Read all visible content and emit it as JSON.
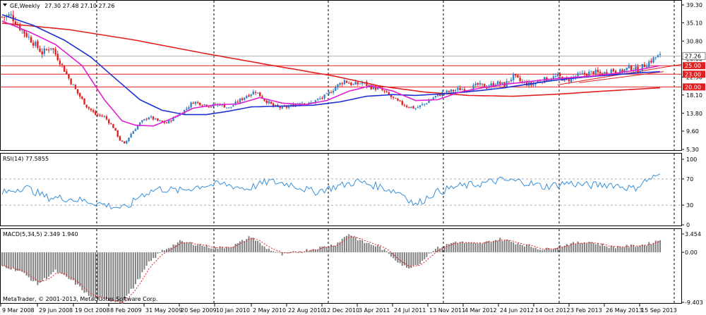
{
  "header": {
    "symbol": "GE,Weekly",
    "ohlc": "27.30 27.48 27.10 27.26",
    "rsi_label": "RSI(14) 77.5855",
    "macd_label": "MACD(5,34,5) 2.349 1.940",
    "copyright": "MetaTrader, © 2001-2013, MetaQuotes Software Corp."
  },
  "colors": {
    "bull": "#3a82c8",
    "bear": "#e02020",
    "ma_fast": "#e020d0",
    "ma_mid": "#2030d0",
    "ma_slow": "#e02020",
    "rsi": "#3a90d8",
    "macd_hist": "#808080",
    "macd_signal": "#e02020",
    "hline": "#e02020"
  },
  "price_axis": {
    "ticks": [
      "39.30",
      "35.10",
      "30.80",
      "26.60",
      "22.30",
      "18.10",
      "13.80",
      "9.60",
      "5.30"
    ],
    "current": "27.26",
    "levels": [
      "25.00",
      "23.00",
      "20.00"
    ]
  },
  "rsi_axis": {
    "ticks": [
      "100",
      "70",
      "30",
      "0"
    ],
    "current": "77.5855"
  },
  "macd_axis": {
    "ticks": [
      "3.454",
      "0.00",
      "-9.403"
    ]
  },
  "time_axis": [
    "9 Mar 2008",
    "29 Jun 2008",
    "19 Oct 2008",
    "8 Feb 2009",
    "31 May 2009",
    "20 Sep 2009",
    "10 Jan 2010",
    "2 May 2010",
    "22 Aug 2010",
    "12 Dec 2010",
    "3 Apr 2011",
    "24 Jul 2011",
    "13 Nov 2011",
    "4 Mar 2012",
    "24 Jun 2012",
    "14 Oct 2012",
    "3 Feb 2013",
    "26 May 2013",
    "15 Sep 2013"
  ],
  "chart_data": {
    "type": "candlestick",
    "title": "GE,Weekly 27.30 27.48 27.10 27.26",
    "ylim": [
      5.3,
      39.3
    ],
    "close_keypoints": [
      [
        0,
        36.5
      ],
      [
        4,
        36.8
      ],
      [
        8,
        34.0
      ],
      [
        14,
        30.5
      ],
      [
        18,
        28.0
      ],
      [
        22,
        29.5
      ],
      [
        26,
        26.0
      ],
      [
        30,
        22.0
      ],
      [
        34,
        18.5
      ],
      [
        38,
        15.5
      ],
      [
        42,
        13.5
      ],
      [
        46,
        13.0
      ],
      [
        50,
        10.5
      ],
      [
        53,
        7.5
      ],
      [
        55,
        6.5
      ],
      [
        58,
        9.0
      ],
      [
        62,
        11.5
      ],
      [
        66,
        13.0
      ],
      [
        70,
        12.0
      ],
      [
        74,
        11.5
      ],
      [
        78,
        13.0
      ],
      [
        82,
        14.5
      ],
      [
        86,
        16.5
      ],
      [
        90,
        16.0
      ],
      [
        94,
        15.5
      ],
      [
        98,
        16.0
      ],
      [
        102,
        15.0
      ],
      [
        106,
        16.5
      ],
      [
        110,
        18.0
      ],
      [
        114,
        19.0
      ],
      [
        118,
        17.0
      ],
      [
        122,
        15.5
      ],
      [
        126,
        15.0
      ],
      [
        130,
        15.5
      ],
      [
        134,
        16.5
      ],
      [
        138,
        16.0
      ],
      [
        142,
        17.0
      ],
      [
        146,
        18.0
      ],
      [
        150,
        20.0
      ],
      [
        154,
        21.5
      ],
      [
        158,
        20.5
      ],
      [
        162,
        21.0
      ],
      [
        166,
        20.0
      ],
      [
        170,
        19.5
      ],
      [
        174,
        18.0
      ],
      [
        178,
        16.5
      ],
      [
        182,
        15.5
      ],
      [
        186,
        15.0
      ],
      [
        190,
        16.0
      ],
      [
        194,
        17.5
      ],
      [
        198,
        18.5
      ],
      [
        202,
        19.0
      ],
      [
        206,
        19.5
      ],
      [
        210,
        19.5
      ],
      [
        214,
        20.5
      ],
      [
        218,
        20.0
      ],
      [
        222,
        21.0
      ],
      [
        226,
        20.5
      ],
      [
        230,
        22.5
      ],
      [
        234,
        21.0
      ],
      [
        238,
        20.5
      ],
      [
        242,
        21.5
      ],
      [
        246,
        22.0
      ],
      [
        250,
        22.5
      ],
      [
        254,
        21.5
      ],
      [
        258,
        22.5
      ],
      [
        262,
        23.0
      ],
      [
        266,
        23.5
      ],
      [
        270,
        23.0
      ],
      [
        274,
        24.0
      ],
      [
        278,
        23.5
      ],
      [
        282,
        24.5
      ],
      [
        286,
        24.0
      ],
      [
        290,
        25.5
      ],
      [
        294,
        27.0
      ],
      [
        296,
        27.26
      ]
    ],
    "ma_fast_keypoints": [
      [
        0,
        35.5
      ],
      [
        12,
        33.0
      ],
      [
        24,
        30.0
      ],
      [
        36,
        25.0
      ],
      [
        46,
        17.0
      ],
      [
        54,
        12.0
      ],
      [
        60,
        11.0
      ],
      [
        68,
        10.8
      ],
      [
        76,
        12.5
      ],
      [
        86,
        15.0
      ],
      [
        96,
        15.8
      ],
      [
        106,
        16.0
      ],
      [
        116,
        17.5
      ],
      [
        126,
        16.2
      ],
      [
        136,
        15.8
      ],
      [
        146,
        16.8
      ],
      [
        156,
        19.0
      ],
      [
        166,
        20.3
      ],
      [
        176,
        19.0
      ],
      [
        186,
        16.8
      ],
      [
        196,
        17.0
      ],
      [
        206,
        18.8
      ],
      [
        216,
        19.8
      ],
      [
        226,
        20.6
      ],
      [
        236,
        21.2
      ],
      [
        246,
        21.8
      ],
      [
        256,
        22.2
      ],
      [
        266,
        22.6
      ],
      [
        276,
        23.2
      ],
      [
        286,
        24.0
      ],
      [
        296,
        25.0
      ]
    ],
    "ma_mid_keypoints": [
      [
        0,
        37.0
      ],
      [
        14,
        34.5
      ],
      [
        28,
        31.0
      ],
      [
        40,
        27.0
      ],
      [
        52,
        21.5
      ],
      [
        62,
        17.0
      ],
      [
        72,
        14.5
      ],
      [
        82,
        13.5
      ],
      [
        92,
        13.5
      ],
      [
        102,
        14.3
      ],
      [
        112,
        15.3
      ],
      [
        126,
        15.5
      ],
      [
        140,
        15.7
      ],
      [
        152,
        16.5
      ],
      [
        164,
        17.8
      ],
      [
        176,
        18.2
      ],
      [
        186,
        18.0
      ],
      [
        196,
        18.3
      ],
      [
        206,
        18.7
      ],
      [
        216,
        19.2
      ],
      [
        226,
        19.8
      ],
      [
        236,
        20.6
      ],
      [
        246,
        21.4
      ],
      [
        256,
        22.0
      ],
      [
        266,
        22.5
      ],
      [
        276,
        22.9
      ],
      [
        286,
        23.3
      ],
      [
        296,
        23.6
      ]
    ],
    "ma_slow_keypoints": [
      [
        0,
        35.0
      ],
      [
        30,
        33.5
      ],
      [
        60,
        31.0
      ],
      [
        90,
        28.0
      ],
      [
        120,
        25.2
      ],
      [
        150,
        22.5
      ],
      [
        170,
        20.2
      ],
      [
        190,
        18.8
      ],
      [
        210,
        18.0
      ],
      [
        230,
        17.8
      ],
      [
        250,
        18.3
      ],
      [
        270,
        19.0
      ],
      [
        296,
        19.8
      ]
    ],
    "rsi_keypoints": [
      [
        0,
        48
      ],
      [
        10,
        58
      ],
      [
        20,
        42
      ],
      [
        30,
        40
      ],
      [
        40,
        35
      ],
      [
        50,
        28
      ],
      [
        56,
        25
      ],
      [
        62,
        45
      ],
      [
        70,
        55
      ],
      [
        80,
        52
      ],
      [
        90,
        60
      ],
      [
        100,
        62
      ],
      [
        110,
        55
      ],
      [
        120,
        66
      ],
      [
        130,
        62
      ],
      [
        140,
        50
      ],
      [
        150,
        58
      ],
      [
        160,
        66
      ],
      [
        170,
        58
      ],
      [
        180,
        48
      ],
      [
        186,
        30
      ],
      [
        194,
        48
      ],
      [
        204,
        58
      ],
      [
        214,
        62
      ],
      [
        224,
        68
      ],
      [
        234,
        66
      ],
      [
        244,
        58
      ],
      [
        254,
        64
      ],
      [
        264,
        60
      ],
      [
        274,
        62
      ],
      [
        284,
        55
      ],
      [
        290,
        68
      ],
      [
        296,
        77.59
      ]
    ],
    "macd_keypoints": [
      [
        0,
        -2.5
      ],
      [
        8,
        -3.5
      ],
      [
        16,
        -6.0
      ],
      [
        24,
        -3.5
      ],
      [
        32,
        -5.5
      ],
      [
        40,
        -8.5
      ],
      [
        48,
        -9.0
      ],
      [
        54,
        -9.4
      ],
      [
        60,
        -6.0
      ],
      [
        66,
        -2.0
      ],
      [
        72,
        0.3
      ],
      [
        80,
        2.0
      ],
      [
        88,
        1.5
      ],
      [
        96,
        0.8
      ],
      [
        104,
        1.2
      ],
      [
        112,
        3.0
      ],
      [
        118,
        1.0
      ],
      [
        126,
        -0.5
      ],
      [
        134,
        0.2
      ],
      [
        142,
        0.8
      ],
      [
        150,
        1.5
      ],
      [
        156,
        3.5
      ],
      [
        162,
        2.0
      ],
      [
        170,
        1.0
      ],
      [
        176,
        -1.0
      ],
      [
        182,
        -3.0
      ],
      [
        188,
        -2.0
      ],
      [
        194,
        0.5
      ],
      [
        204,
        2.0
      ],
      [
        214,
        1.5
      ],
      [
        224,
        2.5
      ],
      [
        234,
        1.5
      ],
      [
        244,
        0.5
      ],
      [
        254,
        1.5
      ],
      [
        264,
        2.0
      ],
      [
        274,
        1.0
      ],
      [
        284,
        1.2
      ],
      [
        290,
        1.5
      ],
      [
        296,
        2.35
      ]
    ],
    "series": [
      {
        "name": "GE,Weekly"
      },
      {
        "name": "RSI(14)"
      },
      {
        "name": "MACD(5,34,5)"
      }
    ]
  }
}
